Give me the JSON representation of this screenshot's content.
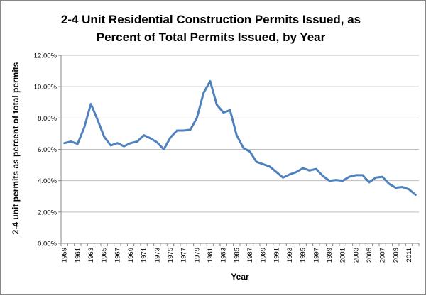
{
  "chart_data": {
    "type": "line",
    "title_line1": "2-4 Unit Residential Construction  Permits Issued, as",
    "title_line2": "Percent of Total Permits Issued, by Year",
    "xlabel": "Year",
    "ylabel": "2-4 unit permits as percent of total permits",
    "ylim": [
      0,
      12
    ],
    "y_ticks": [
      0,
      2,
      4,
      6,
      8,
      10,
      12
    ],
    "y_tick_labels": [
      "0.00%",
      "2.00%",
      "4.00%",
      "6.00%",
      "8.00%",
      "10.00%",
      "12.00%"
    ],
    "x_tick_labels": [
      "1959",
      "1961",
      "1963",
      "1965",
      "1967",
      "1969",
      "1971",
      "1973",
      "1975",
      "1977",
      "1979",
      "1981",
      "1983",
      "1985",
      "1987",
      "1989",
      "1991",
      "1993",
      "1995",
      "1997",
      "1999",
      "2001",
      "2003",
      "2005",
      "2007",
      "2009",
      "2011"
    ],
    "grid": true,
    "legend": "none",
    "series_color": "#4f81bd",
    "x": [
      1959,
      1960,
      1961,
      1962,
      1963,
      1964,
      1965,
      1966,
      1967,
      1968,
      1969,
      1970,
      1971,
      1972,
      1973,
      1974,
      1975,
      1976,
      1977,
      1978,
      1979,
      1980,
      1981,
      1982,
      1983,
      1984,
      1985,
      1986,
      1987,
      1988,
      1989,
      1990,
      1991,
      1992,
      1993,
      1994,
      1995,
      1996,
      1997,
      1998,
      1999,
      2000,
      2001,
      2002,
      2003,
      2004,
      2005,
      2006,
      2007,
      2008,
      2009,
      2010,
      2011,
      2012
    ],
    "series": [
      {
        "values": [
          6.4,
          6.5,
          6.35,
          7.4,
          8.9,
          7.9,
          6.8,
          6.25,
          6.4,
          6.2,
          6.4,
          6.5,
          6.9,
          6.7,
          6.45,
          6.0,
          6.75,
          7.2,
          7.2,
          7.25,
          8.0,
          9.6,
          10.35,
          8.85,
          8.35,
          8.5,
          6.9,
          6.1,
          5.85,
          5.2,
          5.05,
          4.9,
          4.55,
          4.2,
          4.4,
          4.55,
          4.8,
          4.65,
          4.75,
          4.3,
          4.0,
          4.05,
          4.0,
          4.25,
          4.35,
          4.35,
          3.9,
          4.2,
          4.25,
          3.8,
          3.55,
          3.6,
          3.45,
          3.1
        ]
      }
    ]
  }
}
